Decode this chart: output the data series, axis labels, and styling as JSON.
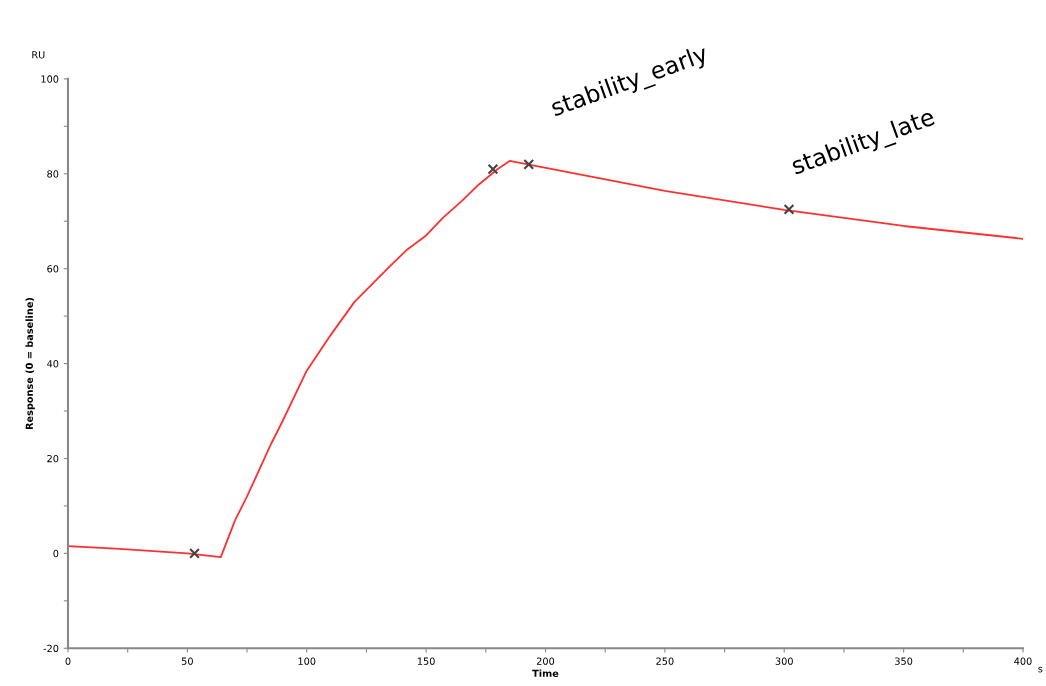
{
  "chart_data": {
    "type": "line",
    "xlabel": "Time",
    "ylabel": "Response (0 = baseline)",
    "xlim": [
      0,
      400
    ],
    "ylim": [
      -20,
      100
    ],
    "xticks": [
      0,
      {
        "value": 25,
        "label": null
      },
      50,
      {
        "value": 75,
        "label": null
      },
      100,
      {
        "value": 125,
        "label": null
      },
      150,
      {
        "value": 175,
        "label": null
      },
      200,
      {
        "value": 225,
        "label": null
      },
      250,
      {
        "value": 275,
        "label": null
      },
      300,
      {
        "value": 325,
        "label": null
      },
      350,
      {
        "value": 375,
        "label": null
      },
      400
    ],
    "yticks": [
      -20,
      {
        "value": -10,
        "label": null
      },
      0,
      {
        "value": 10,
        "label": null
      },
      20,
      {
        "value": 30,
        "label": null
      },
      40,
      {
        "value": 50,
        "label": null
      },
      60,
      {
        "value": 70,
        "label": null
      },
      80,
      {
        "value": 90,
        "label": null
      },
      100
    ],
    "grid": false,
    "legend": false,
    "series": [
      {
        "color": "#ff3030",
        "marker": "none",
        "line_style": "solid",
        "x": [
          0,
          20,
          50,
          64,
          70,
          75,
          80,
          85,
          90,
          100,
          110,
          120,
          135,
          142,
          150,
          157,
          165,
          172,
          180,
          185,
          250,
          300,
          350,
          400
        ],
        "values": [
          1.5,
          1,
          0,
          -0.8,
          7,
          12,
          17.5,
          23,
          28,
          38.5,
          46,
          53,
          60.6,
          64,
          67,
          70.7,
          74.3,
          77.7,
          81,
          82.7,
          76.4,
          72.4,
          69,
          66.3
        ]
      },
      {
        "type": "scatter",
        "color": "#444444",
        "marker": "cross",
        "x": [
          53,
          178,
          193,
          302
        ],
        "values": [
          0,
          81,
          82,
          72.5
        ]
      }
    ],
    "annotations": [
      "RU",
      "s",
      "stability_early",
      "stability_late"
    ]
  }
}
